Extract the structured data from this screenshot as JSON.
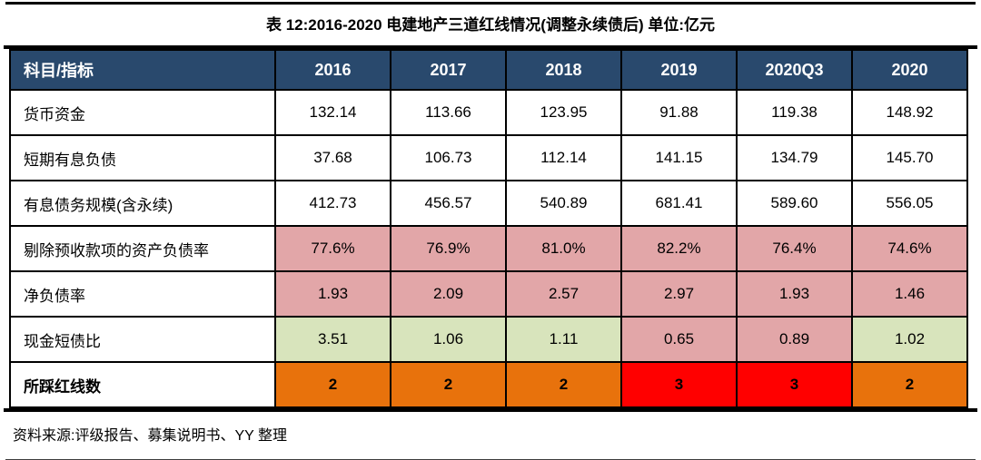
{
  "title": "表 12:2016-2020 电建地产三道红线情况(调整永续债后) 单位:亿元",
  "table": {
    "header": {
      "label": "科目/指标",
      "years": [
        "2016",
        "2017",
        "2018",
        "2019",
        "2020Q3",
        "2020"
      ]
    },
    "rows": [
      {
        "label": "货币资金",
        "values": [
          "132.14",
          "113.66",
          "123.95",
          "91.88",
          "119.38",
          "148.92"
        ],
        "bg": [
          "white",
          "white",
          "white",
          "white",
          "white",
          "white"
        ]
      },
      {
        "label": "短期有息负债",
        "values": [
          "37.68",
          "106.73",
          "112.14",
          "141.15",
          "134.79",
          "145.70"
        ],
        "bg": [
          "white",
          "white",
          "white",
          "white",
          "white",
          "white"
        ]
      },
      {
        "label": "有息债务规模(含永续)",
        "values": [
          "412.73",
          "456.57",
          "540.89",
          "681.41",
          "589.60",
          "556.05"
        ],
        "bg": [
          "white",
          "white",
          "white",
          "white",
          "white",
          "white"
        ]
      },
      {
        "label": "剔除预收款项的资产负债率",
        "values": [
          "77.6%",
          "76.9%",
          "81.0%",
          "82.2%",
          "76.4%",
          "74.6%"
        ],
        "bg": [
          "pink",
          "pink",
          "pink",
          "pink",
          "pink",
          "pink"
        ]
      },
      {
        "label": "净负债率",
        "values": [
          "1.93",
          "2.09",
          "2.57",
          "2.97",
          "1.93",
          "1.46"
        ],
        "bg": [
          "pink",
          "pink",
          "pink",
          "pink",
          "pink",
          "pink"
        ]
      },
      {
        "label": "现金短债比",
        "values": [
          "3.51",
          "1.06",
          "1.11",
          "0.65",
          "0.89",
          "1.02"
        ],
        "bg": [
          "green",
          "green",
          "green",
          "pink",
          "pink",
          "green"
        ]
      },
      {
        "label": "所踩红线数",
        "values": [
          "2",
          "2",
          "2",
          "3",
          "3",
          "2"
        ],
        "bg": [
          "orange",
          "orange",
          "orange",
          "red",
          "red",
          "orange"
        ]
      }
    ]
  },
  "footer": {
    "source": "资料来源:评级报告、募集说明书、YY 整理"
  },
  "palette": {
    "header_bg": "#29496D",
    "header_text": "#FFFFFF",
    "white": "#FFFFFF",
    "pink": "#E2A6A8",
    "green": "#D8E4BC",
    "orange": "#E8720C",
    "red": "#FF0000"
  }
}
